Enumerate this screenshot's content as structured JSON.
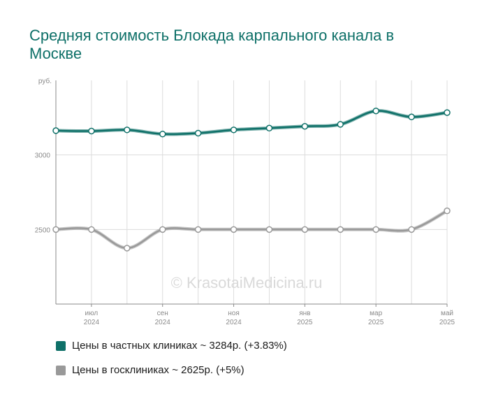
{
  "title": "Средняя стоимость Блокада карпального канала в Москве",
  "watermark": "© KrasotaiMedicina.ru",
  "chart_data": {
    "type": "line",
    "y_unit": "руб.",
    "yticks": [
      3000,
      2500
    ],
    "ylim": [
      2000,
      3500
    ],
    "x": [
      "2024-06",
      "2024-07",
      "2024-08",
      "2024-09",
      "2024-10",
      "2024-11",
      "2024-12",
      "2025-01",
      "2025-02",
      "2025-03",
      "2025-04",
      "2025-05"
    ],
    "xticks": [
      {
        "month": "июл",
        "year": "2024"
      },
      {
        "month": "сен",
        "year": "2024"
      },
      {
        "month": "ноя",
        "year": "2024"
      },
      {
        "month": "янв",
        "year": "2025"
      },
      {
        "month": "мар",
        "year": "2025"
      },
      {
        "month": "май",
        "year": "2025"
      }
    ],
    "grid": true,
    "legend_position": "bottom",
    "series": [
      {
        "name": "Цены в частных клиниках ~ 3284р. (+3.83%)",
        "color": "#0e7068",
        "values": [
          3163,
          3160,
          3168,
          3140,
          3146,
          3168,
          3180,
          3192,
          3205,
          3295,
          3255,
          3284
        ]
      },
      {
        "name": "Цены в госклиниках ~ 2625р. (+5%)",
        "color": "#999999",
        "values": [
          2500,
          2500,
          2375,
          2500,
          2500,
          2500,
          2500,
          2500,
          2500,
          2500,
          2500,
          2625
        ]
      }
    ]
  }
}
